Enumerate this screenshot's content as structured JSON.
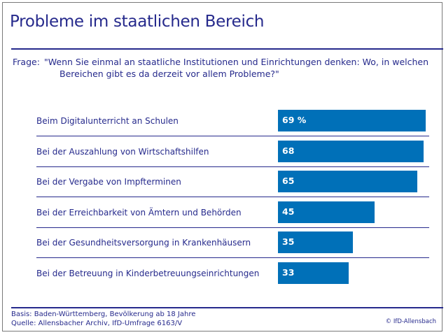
{
  "title": "Probleme im staatlichen Bereich",
  "question": {
    "label": "Frage:",
    "line1": "\"Wenn Sie einmal an staatliche Institutionen und Einrichtungen denken: Wo, in welchen",
    "line2": "Bereichen gibt es da derzeit vor allem Probleme?\""
  },
  "chart_data": {
    "type": "bar",
    "orientation": "horizontal",
    "title": "Probleme im staatlichen Bereich",
    "unit": "%",
    "categories": [
      "Beim Digitalunterricht an Schulen",
      "Bei der Auszahlung von Wirtschaftshilfen",
      "Bei der Vergabe von Impfterminen",
      "Bei der Erreichbarkeit von Ämtern und Behörden",
      "Bei der Gesundheitsversorgung in Krankenhäusern",
      "Bei der Betreuung in Kinderbetreuungseinrichtungen"
    ],
    "values": [
      69,
      68,
      65,
      45,
      35,
      33
    ],
    "value_labels": [
      "69 %",
      "68",
      "65",
      "45",
      "35",
      "33"
    ],
    "xlabel": "",
    "ylabel": "",
    "xlim": [
      0,
      100
    ],
    "grid": false,
    "legend": "none",
    "bar_color": "#0070b8"
  },
  "footer": {
    "basis": "Basis: Baden-Württemberg, Bevölkerung ab 18 Jahre",
    "source": "Quelle: Allensbacher Archiv, IfD-Umfrage 6163/V",
    "copyright": "© IfD-Allensbach"
  }
}
